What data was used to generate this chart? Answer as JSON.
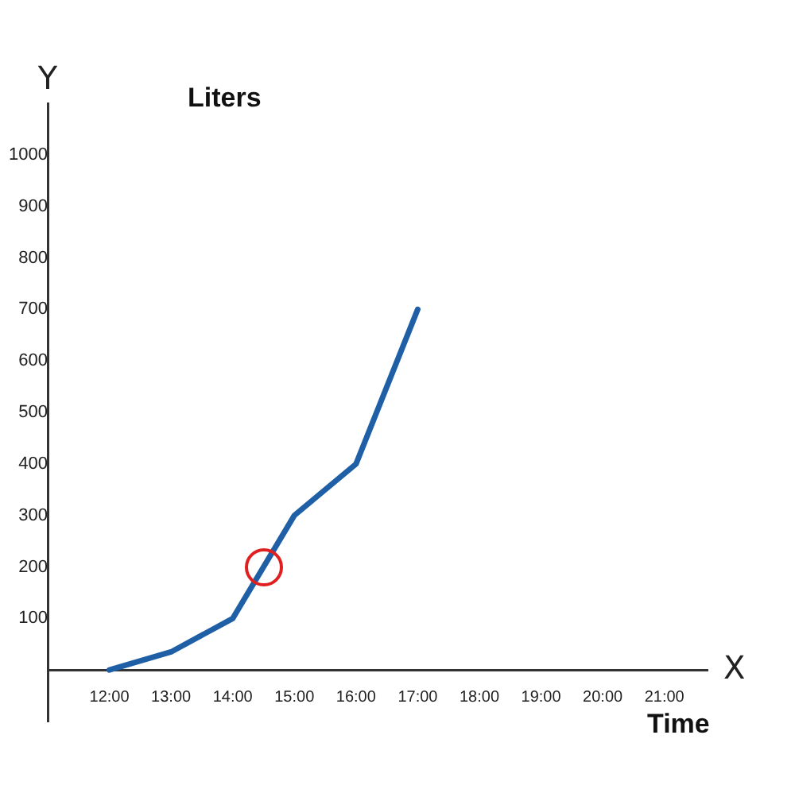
{
  "chart_data": {
    "type": "line",
    "xlabel": "Time",
    "ylabel": "Liters",
    "annotations": [
      "Y",
      "X"
    ],
    "x": [
      12,
      13,
      14,
      15,
      16,
      17
    ],
    "series": [
      {
        "color": "#1f5fa6",
        "values": [
          0,
          35,
          100,
          300,
          400,
          700
        ]
      }
    ],
    "xlim": [
      11,
      21.7
    ],
    "ylim": [
      -100,
      1100
    ],
    "xticks": [
      {
        "value": 12,
        "label": "12:00"
      },
      {
        "value": 13,
        "label": "13:00"
      },
      {
        "value": 14,
        "label": "14:00"
      },
      {
        "value": 15,
        "label": "15:00"
      },
      {
        "value": 16,
        "label": "16:00"
      },
      {
        "value": 17,
        "label": "17:00"
      },
      {
        "value": 18,
        "label": "18:00"
      },
      {
        "value": 19,
        "label": "19:00"
      },
      {
        "value": 20,
        "label": "20:00"
      },
      {
        "value": 21,
        "label": "21:00"
      }
    ],
    "yticks": [
      100,
      200,
      300,
      400,
      500,
      600,
      700,
      800,
      900,
      1000
    ],
    "marker": "none",
    "line_style": "solid",
    "legend": false
  }
}
